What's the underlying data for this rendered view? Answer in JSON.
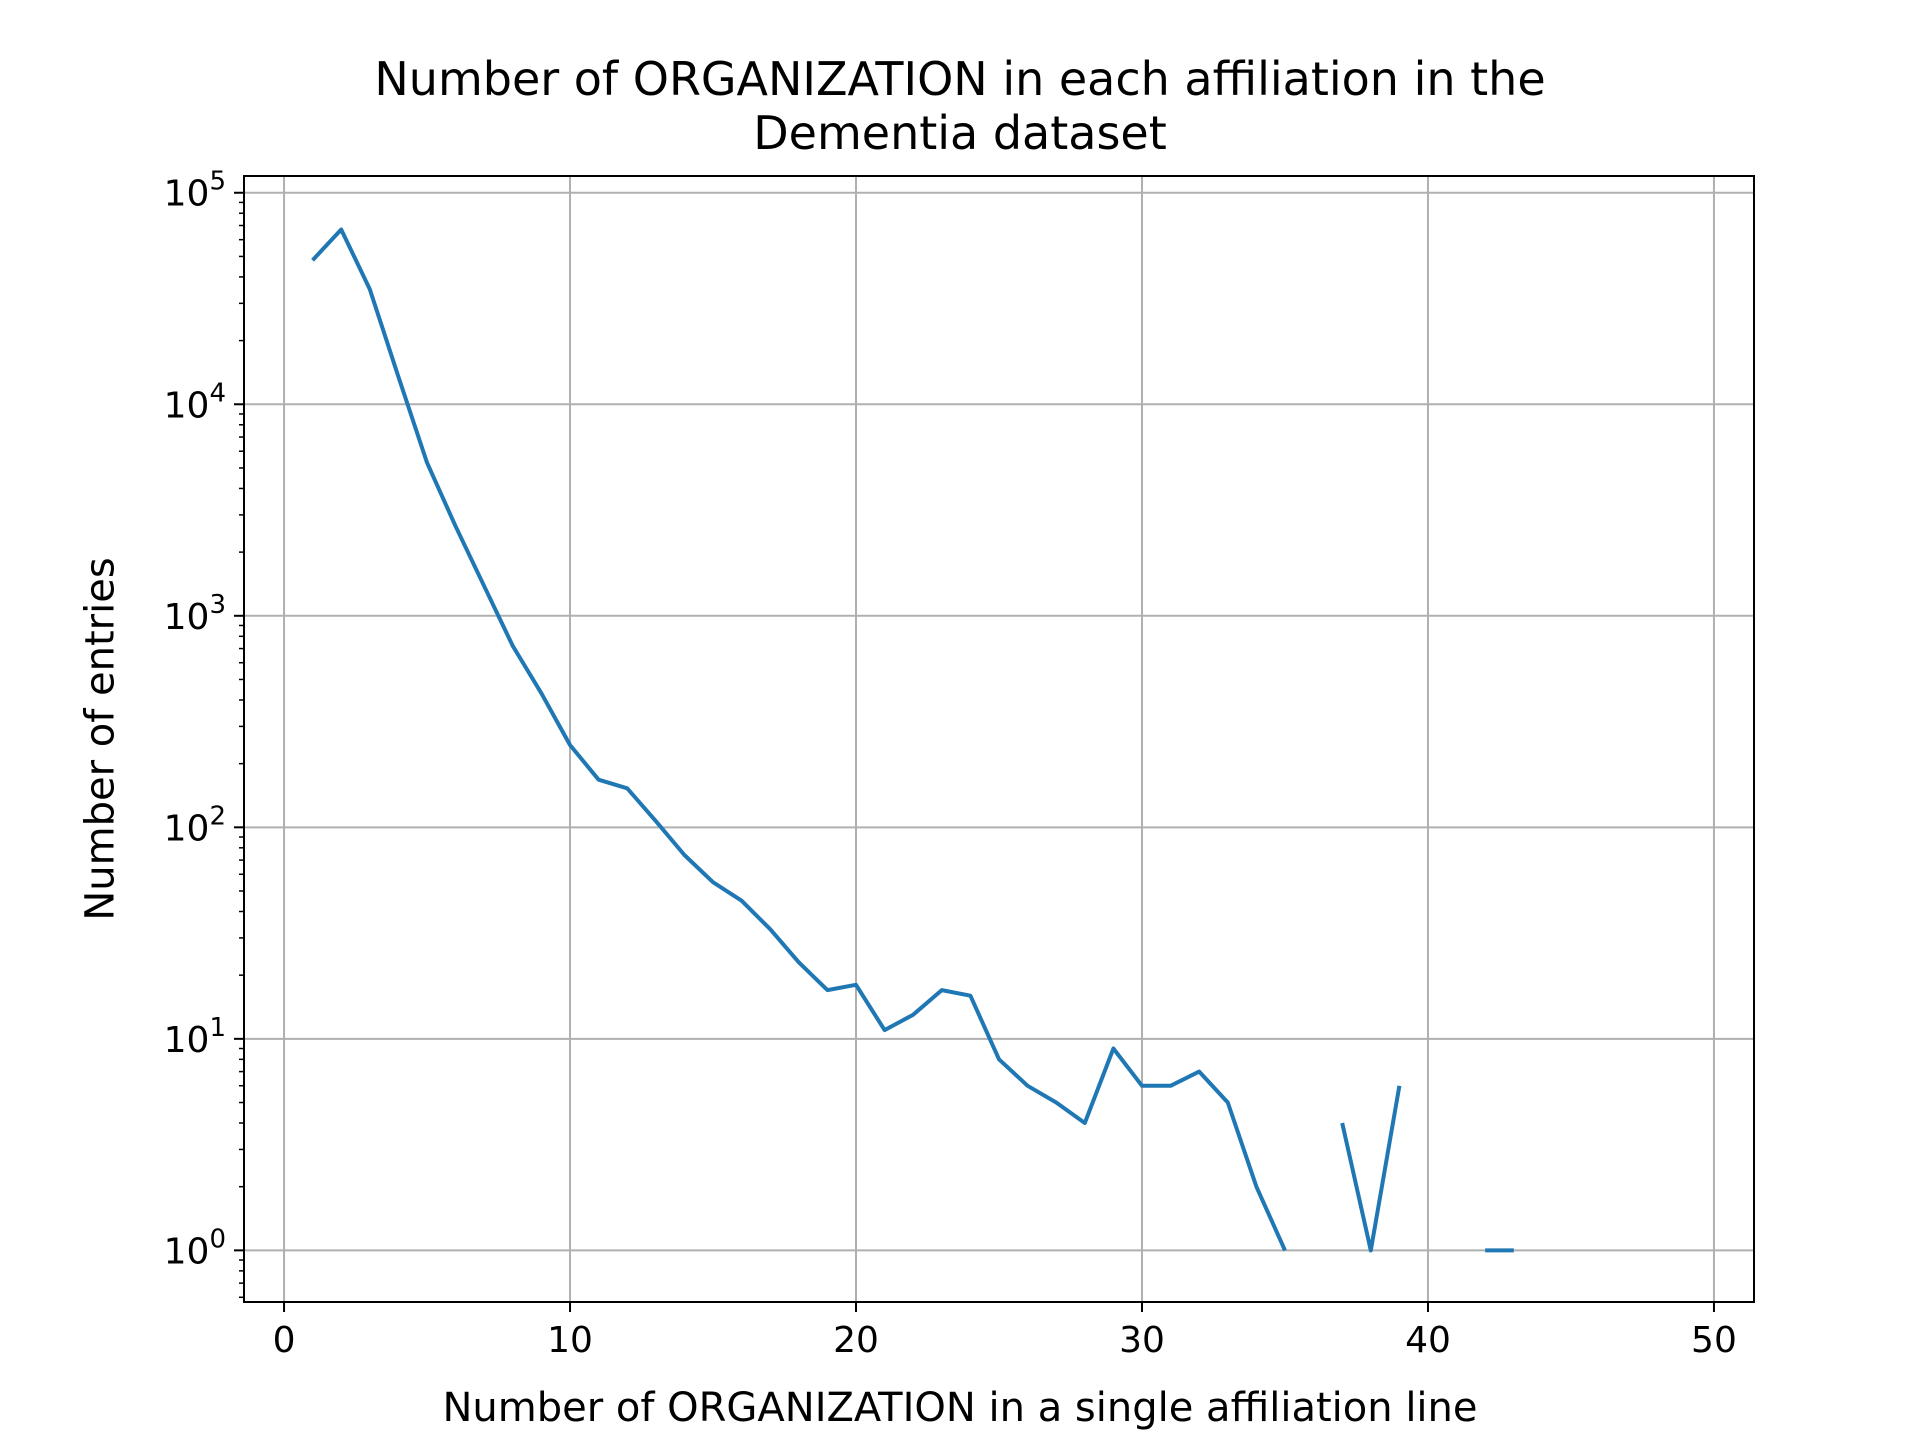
{
  "chart_data": {
    "type": "line",
    "title_line1": "Number of ORGANIZATION in each affiliation in the",
    "title_line2": "Dementia dataset",
    "xlabel": "Number of ORGANIZATION in a single affiliation line",
    "ylabel": "Number of entries",
    "y_scale": "log",
    "grid": true,
    "xlim": [
      -1.4,
      51.4
    ],
    "ylim": [
      0.57,
      120000
    ],
    "xticks": [
      0,
      10,
      20,
      30,
      40,
      50
    ],
    "xtick_labels": [
      "0",
      "10",
      "20",
      "30",
      "40",
      "50"
    ],
    "yticks": [
      1,
      10,
      100,
      1000,
      10000,
      100000
    ],
    "ytick_labels": [
      {
        "base": "10",
        "exp": "0"
      },
      {
        "base": "10",
        "exp": "1"
      },
      {
        "base": "10",
        "exp": "2"
      },
      {
        "base": "10",
        "exp": "3"
      },
      {
        "base": "10",
        "exp": "4"
      },
      {
        "base": "10",
        "exp": "5"
      }
    ],
    "line_color": "#1f77b4",
    "grid_color": "#b0b0b0",
    "series": [
      {
        "x": [
          1,
          2,
          3,
          4,
          5,
          6,
          7,
          8,
          9,
          10,
          11,
          12,
          13,
          14,
          15,
          16,
          17,
          18,
          19,
          20,
          21,
          22,
          23,
          24,
          25,
          26,
          27,
          28,
          29,
          30,
          31,
          32,
          33,
          34,
          35,
          36,
          37,
          38,
          39,
          40,
          41,
          42,
          43
        ],
        "values": [
          48000,
          67000,
          35000,
          13500,
          5300,
          2650,
          1380,
          720,
          430,
          245,
          168,
          153,
          107,
          74,
          55,
          45,
          33,
          23,
          17,
          18,
          11,
          13,
          17,
          16,
          8,
          6,
          5,
          4,
          9,
          6,
          6,
          7,
          5,
          2,
          1,
          0,
          4,
          1,
          6,
          0,
          0,
          1,
          1
        ]
      }
    ]
  }
}
